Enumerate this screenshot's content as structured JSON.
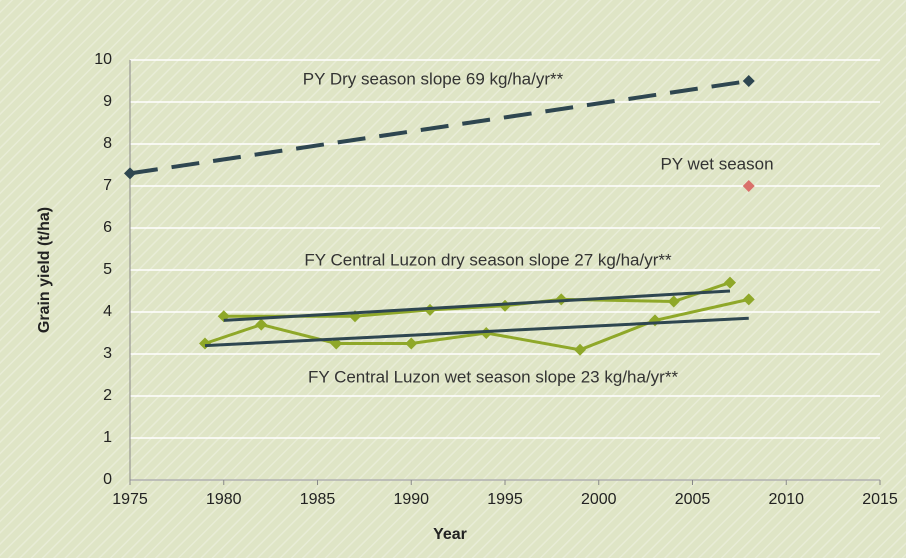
{
  "chart_data": {
    "type": "line",
    "x_label": "Year",
    "y_label": "Grain yield (t/ha)",
    "xlim": [
      1975,
      2015
    ],
    "xticks": [
      1975,
      1980,
      1985,
      1990,
      1995,
      2000,
      2005,
      2010,
      2015
    ],
    "ylim": [
      0,
      10
    ],
    "yticks": [
      0,
      1,
      2,
      3,
      4,
      5,
      6,
      7,
      8,
      9,
      10
    ],
    "grid": true,
    "series": [
      {
        "color": "#2e4650",
        "dashed": true,
        "markers": true,
        "x": [
          1975,
          2008
        ],
        "values": [
          7.3,
          9.5
        ]
      },
      {
        "color": "#d9706a",
        "markers": true,
        "line": false,
        "x": [
          2008
        ],
        "values": [
          7.0
        ]
      },
      {
        "color": "#8fa829",
        "markers": true,
        "x": [
          1980,
          1987,
          1991,
          1995,
          1998,
          2004,
          2007
        ],
        "values": [
          3.9,
          3.9,
          4.05,
          4.15,
          4.3,
          4.25,
          4.7
        ]
      },
      {
        "color": "#8fa829",
        "markers": true,
        "x": [
          1979,
          1982,
          1986,
          1990,
          1994,
          1999,
          2003,
          2008
        ],
        "values": [
          3.25,
          3.7,
          3.25,
          3.25,
          3.5,
          3.1,
          3.8,
          4.3
        ]
      },
      {
        "color": "#2e4650",
        "markers": false,
        "x": [
          1980,
          2007
        ],
        "values": [
          3.8,
          4.5
        ]
      },
      {
        "color": "#2e4650",
        "markers": false,
        "x": [
          1979,
          2008
        ],
        "values": [
          3.2,
          3.85
        ]
      }
    ],
    "annotations": [
      "PY Dry season slope 69 kg/ha/yr**",
      "PY wet season",
      "FY Central Luzon dry season slope 27 kg/ha/yr**",
      "FY Central Luzon wet season slope 23 kg/ha/yr**"
    ]
  }
}
